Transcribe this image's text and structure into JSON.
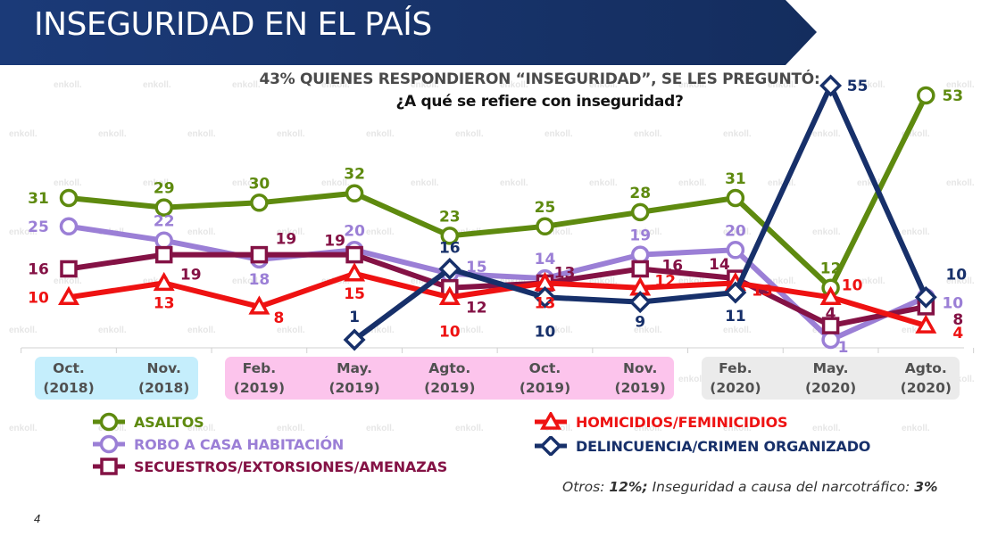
{
  "header": {
    "title": "INSEGURIDAD EN EL PAÍS",
    "subtitle": "43% QUIENES RESPONDIERON “INSEGURIDAD”, SE LES PREGUNTÓ:",
    "question": "¿A qué se refiere con inseguridad?"
  },
  "watermark": "enkoll.",
  "page_number": "4",
  "footnote": {
    "others_label": "Otros: ",
    "others_value": "12%;",
    "narco_label": " Inseguridad a causa del narcotráfico: ",
    "narco_value": "3%"
  },
  "periods": [
    {
      "name": "2018",
      "color": "#c5eefc",
      "from": 0,
      "to": 1
    },
    {
      "name": "2019",
      "color": "#fcc4ec",
      "from": 2,
      "to": 6
    },
    {
      "name": "2020",
      "color": "#ebebeb",
      "from": 7,
      "to": 9
    }
  ],
  "chart_data": {
    "type": "line",
    "title": "¿A qué se refiere con inseguridad?",
    "xlabel": "",
    "ylabel": "",
    "categories": [
      {
        "month": "Oct.",
        "year": "(2018)"
      },
      {
        "month": "Nov.",
        "year": "(2018)"
      },
      {
        "month": "Feb.",
        "year": "(2019)"
      },
      {
        "month": "May.",
        "year": "(2019)"
      },
      {
        "month": "Agto.",
        "year": "(2019)"
      },
      {
        "month": "Oct.",
        "year": "(2019)"
      },
      {
        "month": "Nov.",
        "year": "(2019)"
      },
      {
        "month": "Feb.",
        "year": "(2020)"
      },
      {
        "month": "May.",
        "year": "(2020)"
      },
      {
        "month": "Agto.",
        "year": "(2020)"
      }
    ],
    "ylim": [
      0,
      60
    ],
    "grid": false,
    "legend_position": "bottom",
    "series": [
      {
        "name": "ASALTOS",
        "color": "#5e8a0f",
        "marker": "circle",
        "values": [
          31,
          29,
          30,
          32,
          23,
          25,
          28,
          31,
          12,
          53
        ]
      },
      {
        "name": "ROBO A CASA HABITACIÓN",
        "color": "#9b7fd6",
        "marker": "circle",
        "values": [
          25,
          22,
          18,
          20,
          15,
          14,
          19,
          20,
          1,
          10
        ]
      },
      {
        "name": "SECUESTROS/EXTORSIONES/AMENAZAS",
        "color": "#841245",
        "marker": "square",
        "values": [
          16,
          19,
          19,
          19,
          12,
          13,
          16,
          14,
          4,
          8
        ]
      },
      {
        "name": "HOMICIDIOS/FEMINICIDIOS",
        "color": "#ee1212",
        "marker": "triangle",
        "values": [
          10,
          13,
          8,
          15,
          10,
          13,
          12,
          13,
          10,
          4
        ]
      },
      {
        "name": "DELINCUENCIA/CRIMEN ORGANIZADO",
        "color": "#17306a",
        "marker": "diamond",
        "values": [
          null,
          null,
          null,
          1,
          16,
          10,
          9,
          11,
          55,
          10
        ]
      }
    ]
  }
}
